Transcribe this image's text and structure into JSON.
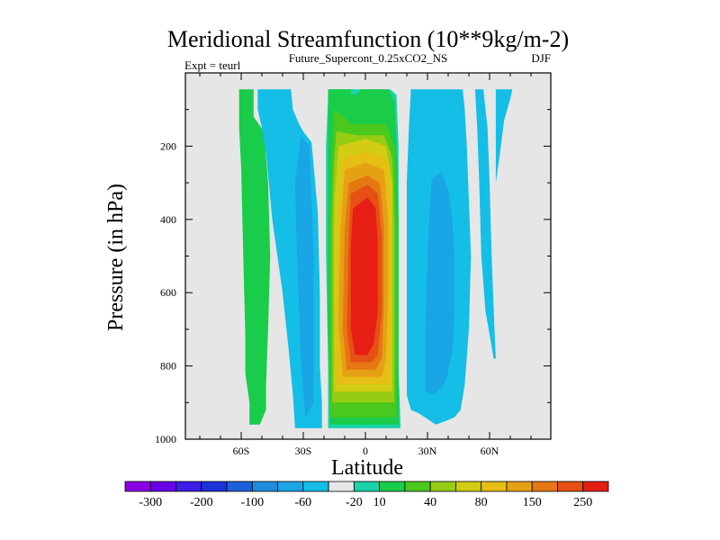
{
  "chart_data": {
    "type": "heatmap",
    "title": "Meridional Streamfunction (10**9kg/m-2)",
    "subtitle": "Future_Supercont_0.25xCO2_NS",
    "left_label": "Expt = teurl",
    "right_label": "DJF",
    "xlabel": "Latitude",
    "ylabel": "Pressure (in hPa)",
    "xlim": [
      -90,
      90
    ],
    "ylim": [
      1000,
      0
    ],
    "missing_color": "#e6e6e6",
    "x_ticks": [
      {
        "value": -60,
        "label": "60S"
      },
      {
        "value": -30,
        "label": "30S"
      },
      {
        "value": 0,
        "label": "0"
      },
      {
        "value": 30,
        "label": "30N"
      },
      {
        "value": 60,
        "label": "60N"
      }
    ],
    "y_ticks": [
      {
        "value": 200,
        "label": "200"
      },
      {
        "value": 400,
        "label": "400"
      },
      {
        "value": 600,
        "label": "600"
      },
      {
        "value": 800,
        "label": "800"
      },
      {
        "value": 1000,
        "label": "1000"
      }
    ],
    "colorbar": {
      "colors": [
        "#8c00e6",
        "#6a00e6",
        "#3c1ee6",
        "#1e32dc",
        "#1e5fdc",
        "#1e8cdc",
        "#19a5e6",
        "#14bee6",
        "#e6e6e6",
        "#19d2aa",
        "#19cc4a",
        "#4ac81e",
        "#96cc14",
        "#d2cc14",
        "#e6be14",
        "#e6a014",
        "#e67814",
        "#e65014",
        "#e61e14"
      ],
      "labels": [
        "-300",
        "-200",
        "-100",
        "-60",
        "-20",
        "10",
        "40",
        "80",
        "150",
        "250"
      ]
    },
    "regions": [
      {
        "name": "sh-outer-cell-positive",
        "value": 20,
        "color": "#19cc4a",
        "outline": [
          [
            -61,
            45
          ],
          [
            -54,
            45
          ],
          [
            -54,
            120
          ],
          [
            -49,
            160
          ],
          [
            -47,
            300
          ],
          [
            -46,
            500
          ],
          [
            -47,
            700
          ],
          [
            -48,
            850
          ],
          [
            -48,
            920
          ],
          [
            -51,
            960
          ],
          [
            -56,
            960
          ],
          [
            -56,
            900
          ],
          [
            -58,
            820
          ],
          [
            -58,
            720
          ],
          [
            -59,
            500
          ],
          [
            -60,
            260
          ],
          [
            -61,
            150
          ],
          [
            -61,
            80
          ]
        ]
      },
      {
        "name": "sh-middle-cell-negative",
        "value": -15,
        "color": "#14bee6",
        "outline": [
          [
            -52,
            45
          ],
          [
            -36,
            45
          ],
          [
            -35,
            100
          ],
          [
            -32,
            140
          ],
          [
            -30,
            160
          ],
          [
            -26,
            190
          ],
          [
            -23,
            380
          ],
          [
            -22,
            600
          ],
          [
            -22,
            800
          ],
          [
            -21,
            900
          ],
          [
            -21,
            970
          ],
          [
            -34,
            970
          ],
          [
            -35,
            880
          ],
          [
            -37,
            760
          ],
          [
            -40,
            600
          ],
          [
            -45,
            400
          ],
          [
            -48,
            220
          ],
          [
            -50,
            150
          ],
          [
            -52,
            100
          ]
        ]
      },
      {
        "name": "sh-middle-cell-core",
        "value": -25,
        "color": "#19a5e6",
        "outline": [
          [
            -31,
            175
          ],
          [
            -27,
            200
          ],
          [
            -25,
            500
          ],
          [
            -25,
            750
          ],
          [
            -25,
            900
          ],
          [
            -29,
            940
          ],
          [
            -31,
            800
          ],
          [
            -33,
            500
          ],
          [
            -34,
            300
          ]
        ]
      },
      {
        "name": "hadley-10",
        "value": 10,
        "color": "#19d2aa",
        "outline": [
          [
            -18,
            45
          ],
          [
            12,
            45
          ],
          [
            15,
            60
          ],
          [
            16,
            200
          ],
          [
            16,
            500
          ],
          [
            16,
            800
          ],
          [
            17,
            970
          ],
          [
            -18,
            970
          ],
          [
            -18,
            800
          ],
          [
            -19,
            500
          ],
          [
            -19,
            200
          ],
          [
            -18,
            60
          ]
        ]
      },
      {
        "name": "hadley-40",
        "value": 40,
        "color": "#19cc4a",
        "outline": [
          [
            -18,
            45
          ],
          [
            -7,
            45
          ],
          [
            -7,
            60
          ],
          [
            -4,
            58
          ],
          [
            -2,
            45
          ],
          [
            11,
            45
          ],
          [
            14,
            75
          ],
          [
            15,
            200
          ],
          [
            16,
            400
          ],
          [
            16,
            700
          ],
          [
            16,
            960
          ],
          [
            -17,
            960
          ],
          [
            -18,
            700
          ],
          [
            -18,
            400
          ],
          [
            -18,
            200
          ],
          [
            -18,
            100
          ]
        ]
      },
      {
        "name": "hadley-60",
        "value": 60,
        "color": "#4ac81e",
        "outline": [
          [
            -15,
            100
          ],
          [
            -6,
            140
          ],
          [
            10,
            140
          ],
          [
            14,
            200
          ],
          [
            15,
            400
          ],
          [
            15,
            700
          ],
          [
            15,
            940
          ],
          [
            -17,
            940
          ],
          [
            -17,
            700
          ],
          [
            -17,
            400
          ],
          [
            -16,
            200
          ]
        ]
      },
      {
        "name": "hadley-80",
        "value": 80,
        "color": "#96cc14",
        "outline": [
          [
            -14,
            160
          ],
          [
            -4,
            170
          ],
          [
            9,
            170
          ],
          [
            13,
            230
          ],
          [
            14,
            400
          ],
          [
            14,
            700
          ],
          [
            14,
            900
          ],
          [
            -16,
            900
          ],
          [
            -16,
            700
          ],
          [
            -16,
            400
          ],
          [
            -15,
            230
          ]
        ]
      },
      {
        "name": "hadley-100",
        "value": 100,
        "color": "#d2cc14",
        "outline": [
          [
            -13,
            200
          ],
          [
            0,
            180
          ],
          [
            10,
            200
          ],
          [
            13,
            300
          ],
          [
            13,
            500
          ],
          [
            13,
            800
          ],
          [
            13,
            870
          ],
          [
            -15,
            870
          ],
          [
            -15,
            600
          ],
          [
            -15,
            350
          ]
        ]
      },
      {
        "name": "hadley-150",
        "value": 150,
        "color": "#e6be14",
        "outline": [
          [
            -11,
            235
          ],
          [
            0,
            215
          ],
          [
            10,
            235
          ],
          [
            12,
            350
          ],
          [
            12,
            550
          ],
          [
            12,
            780
          ],
          [
            11,
            850
          ],
          [
            -14,
            850
          ],
          [
            -14,
            600
          ],
          [
            -13,
            380
          ]
        ]
      },
      {
        "name": "hadley-200",
        "value": 200,
        "color": "#e6a014",
        "outline": [
          [
            -10,
            265
          ],
          [
            0,
            245
          ],
          [
            9,
            265
          ],
          [
            11,
            400
          ],
          [
            11,
            600
          ],
          [
            10,
            780
          ],
          [
            8,
            830
          ],
          [
            -11,
            830
          ],
          [
            -13,
            680
          ],
          [
            -12,
            420
          ]
        ]
      },
      {
        "name": "hadley-250",
        "value": 250,
        "color": "#e67814",
        "outline": [
          [
            -8,
            300
          ],
          [
            1,
            280
          ],
          [
            7,
            300
          ],
          [
            9,
            420
          ],
          [
            9,
            620
          ],
          [
            8,
            780
          ],
          [
            5,
            810
          ],
          [
            -9,
            810
          ],
          [
            -11,
            700
          ],
          [
            -10,
            430
          ]
        ]
      },
      {
        "name": "hadley-300",
        "value": 300,
        "color": "#e65014",
        "outline": [
          [
            -7,
            330
          ],
          [
            1,
            305
          ],
          [
            6,
            330
          ],
          [
            8,
            450
          ],
          [
            8,
            650
          ],
          [
            6,
            770
          ],
          [
            3,
            790
          ],
          [
            -7,
            790
          ],
          [
            -9,
            700
          ],
          [
            -8,
            450
          ]
        ]
      },
      {
        "name": "hadley-core",
        "value": 350,
        "color": "#e61e14",
        "outline": [
          [
            -6,
            370
          ],
          [
            1,
            340
          ],
          [
            5,
            370
          ],
          [
            6,
            470
          ],
          [
            6,
            650
          ],
          [
            4,
            740
          ],
          [
            1,
            770
          ],
          [
            -5,
            770
          ],
          [
            -7,
            700
          ],
          [
            -7,
            470
          ]
        ]
      },
      {
        "name": "nh-cell-negative",
        "value": -15,
        "color": "#14bee6",
        "outline": [
          [
            22,
            45
          ],
          [
            47,
            45
          ],
          [
            48,
            100
          ],
          [
            49,
            200
          ],
          [
            50,
            350
          ],
          [
            51,
            500
          ],
          [
            50,
            700
          ],
          [
            48,
            850
          ],
          [
            46,
            920
          ],
          [
            43,
            940
          ],
          [
            39,
            950
          ],
          [
            34,
            960
          ],
          [
            30,
            945
          ],
          [
            26,
            930
          ],
          [
            22,
            920
          ],
          [
            20,
            880
          ],
          [
            20,
            600
          ],
          [
            20,
            300
          ],
          [
            21,
            150
          ]
        ]
      },
      {
        "name": "nh-cell-core",
        "value": -25,
        "color": "#19a5e6",
        "outline": [
          [
            32,
            290
          ],
          [
            37,
            270
          ],
          [
            40,
            320
          ],
          [
            42,
            400
          ],
          [
            43,
            500
          ],
          [
            43,
            650
          ],
          [
            42,
            760
          ],
          [
            39,
            840
          ],
          [
            35,
            870
          ],
          [
            32,
            880
          ],
          [
            29,
            870
          ],
          [
            29,
            700
          ],
          [
            30,
            500
          ],
          [
            31,
            380
          ]
        ]
      },
      {
        "name": "nh-outer-sliver",
        "value": -15,
        "color": "#14bee6",
        "outline": [
          [
            53,
            45
          ],
          [
            57,
            45
          ],
          [
            59,
            150
          ],
          [
            60,
            300
          ],
          [
            61,
            500
          ],
          [
            62,
            650
          ],
          [
            63,
            780
          ],
          [
            62,
            780
          ],
          [
            58,
            650
          ],
          [
            56,
            500
          ],
          [
            55,
            300
          ],
          [
            54,
            150
          ]
        ]
      },
      {
        "name": "nh-polar-sliver",
        "value": -15,
        "color": "#14bee6",
        "outline": [
          [
            63,
            45
          ],
          [
            71,
            45
          ],
          [
            70,
            70
          ],
          [
            67,
            130
          ],
          [
            65,
            220
          ],
          [
            63,
            300
          ],
          [
            63,
            220
          ],
          [
            63,
            120
          ]
        ]
      }
    ]
  }
}
